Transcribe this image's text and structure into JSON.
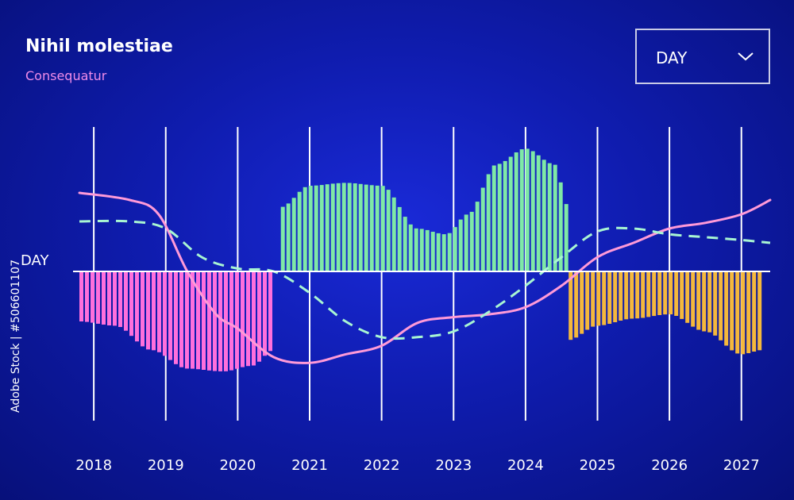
{
  "header": {
    "title": "Nihil molestiae",
    "subtitle": "Consequatur"
  },
  "dropdown": {
    "selected": "DAY",
    "icon": "chevron-down-icon"
  },
  "side_text": "Adobe Stock | #506601107",
  "colors": {
    "grid": "#ffffff",
    "baseline": "#ffffff",
    "pink_area": "#ff6fdc",
    "green_area": "#7fe9a6",
    "orange_area": "#f5b83c",
    "solid_line": "#ff9ad8",
    "dashed_line": "#a8f5d2"
  },
  "chart_data": {
    "type": "area",
    "title": "Nihil molestiae",
    "subtitle": "Consequatur",
    "ylabel": "DAY",
    "x": [
      "2018",
      "2019",
      "2020",
      "2021",
      "2022",
      "2023",
      "2024",
      "2025",
      "2026",
      "2027"
    ],
    "xlim": [
      2017.8,
      2027.4
    ],
    "ylim": [
      -1.0,
      1.0
    ],
    "grid": "vertical",
    "areas": [
      {
        "color": "pink",
        "x": [
          2017.8,
          2018.3,
          2018.8,
          2019.3,
          2019.8,
          2020.2,
          2020.5
        ],
        "y": [
          -0.35,
          -0.38,
          -0.55,
          -0.68,
          -0.7,
          -0.66,
          -0.55
        ]
      },
      {
        "color": "green",
        "x": [
          2020.6,
          2021.0,
          2021.5,
          2022.0,
          2022.5,
          2022.9,
          2023.2,
          2023.6,
          2024.0,
          2024.4,
          2024.6
        ],
        "y": [
          0.45,
          0.6,
          0.62,
          0.6,
          0.3,
          0.26,
          0.4,
          0.75,
          0.86,
          0.75,
          0.45
        ]
      },
      {
        "color": "orange",
        "x": [
          2024.6,
          2025.0,
          2025.5,
          2026.0,
          2026.5,
          2027.0,
          2027.3
        ],
        "y": [
          -0.48,
          -0.38,
          -0.33,
          -0.3,
          -0.42,
          -0.58,
          -0.55
        ]
      }
    ],
    "lines": [
      {
        "style": "solid",
        "x": [
          2017.8,
          2018.5,
          2018.9,
          2019.3,
          2019.7,
          2020.0,
          2020.5,
          2021.0,
          2021.5,
          2022.0,
          2022.5,
          2023.0,
          2023.5,
          2024.0,
          2024.5,
          2025.0,
          2025.5,
          2026.0,
          2026.5,
          2027.0,
          2027.4
        ],
        "y": [
          0.55,
          0.5,
          0.4,
          0.0,
          -0.3,
          -0.4,
          -0.6,
          -0.64,
          -0.58,
          -0.52,
          -0.36,
          -0.32,
          -0.3,
          -0.25,
          -0.1,
          0.1,
          0.2,
          0.3,
          0.34,
          0.4,
          0.5
        ]
      },
      {
        "style": "dashed",
        "x": [
          2017.8,
          2018.5,
          2019.0,
          2019.5,
          2020.0,
          2020.5,
          2021.0,
          2021.5,
          2022.0,
          2022.5,
          2023.0,
          2023.5,
          2024.0,
          2024.5,
          2025.0,
          2025.5,
          2026.0,
          2026.5,
          2027.0,
          2027.4
        ],
        "y": [
          0.35,
          0.35,
          0.3,
          0.1,
          0.02,
          0.0,
          -0.15,
          -0.35,
          -0.46,
          -0.46,
          -0.42,
          -0.28,
          -0.1,
          0.1,
          0.28,
          0.3,
          0.26,
          0.24,
          0.22,
          0.2
        ]
      }
    ]
  }
}
